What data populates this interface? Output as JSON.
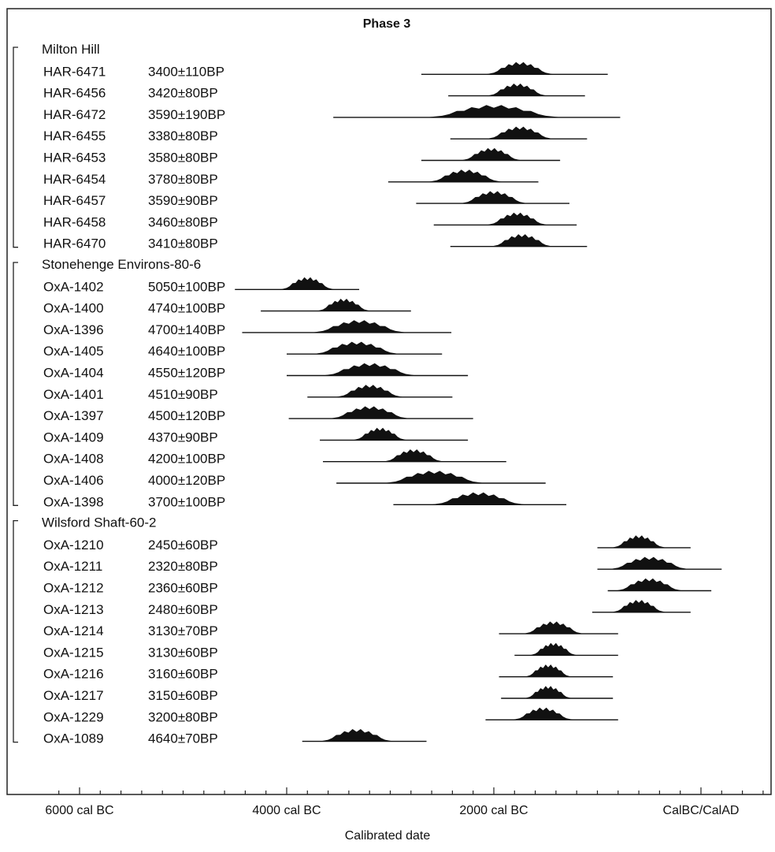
{
  "chart_data": {
    "type": "range",
    "title": "Phase 3",
    "xlabel": "Calibrated date",
    "ylabel": "",
    "x_axis": {
      "unit": "cal BC (negative) / cal AD",
      "range": [
        -6500,
        800
      ],
      "major_ticks": [
        {
          "value": -6000,
          "label": "6000 cal BC"
        },
        {
          "value": -4000,
          "label": "4000 cal BC"
        },
        {
          "value": -2000,
          "label": "2000 cal BC"
        },
        {
          "value": 0,
          "label": "CalBC/CalAD"
        }
      ],
      "minor_tick_step": 200
    },
    "grid": false,
    "groups": [
      {
        "name": "Milton Hill",
        "samples": [
          {
            "lab": "HAR-6471",
            "date": "3400±110BP",
            "range": [
              -2700,
              -900
            ],
            "peak": [
              -2000,
              -1500
            ]
          },
          {
            "lab": "HAR-6456",
            "date": "3420±80BP",
            "range": [
              -2440,
              -1120
            ],
            "peak": [
              -2000,
              -1550
            ]
          },
          {
            "lab": "HAR-6472",
            "date": "3590±190BP",
            "range": [
              -3550,
              -780
            ],
            "peak": [
              -2500,
              -1500
            ]
          },
          {
            "lab": "HAR-6455",
            "date": "3380±80BP",
            "range": [
              -2420,
              -1100
            ],
            "peak": [
              -2000,
              -1500
            ]
          },
          {
            "lab": "HAR-6453",
            "date": "3580±80BP",
            "range": [
              -2700,
              -1360
            ],
            "peak": [
              -2250,
              -1800
            ]
          },
          {
            "lab": "HAR-6454",
            "date": "3780±80BP",
            "range": [
              -3020,
              -1570
            ],
            "peak": [
              -2550,
              -2000
            ]
          },
          {
            "lab": "HAR-6457",
            "date": "3590±90BP",
            "range": [
              -2750,
              -1270
            ],
            "peak": [
              -2250,
              -1750
            ]
          },
          {
            "lab": "HAR-6458",
            "date": "3460±80BP",
            "range": [
              -2580,
              -1200
            ],
            "peak": [
              -2000,
              -1550
            ]
          },
          {
            "lab": "HAR-6470",
            "date": "3410±80BP",
            "range": [
              -2420,
              -1100
            ],
            "peak": [
              -1960,
              -1500
            ]
          }
        ]
      },
      {
        "name": "Stonehenge Environs-80-6",
        "samples": [
          {
            "lab": "OxA-1402",
            "date": "5050±100BP",
            "range": [
              -4500,
              -3300
            ],
            "peak": [
              -4000,
              -3600
            ]
          },
          {
            "lab": "OxA-1400",
            "date": "4740±100BP",
            "range": [
              -4250,
              -2800
            ],
            "peak": [
              -3650,
              -3250
            ]
          },
          {
            "lab": "OxA-1396",
            "date": "4700±140BP",
            "range": [
              -4430,
              -2410
            ],
            "peak": [
              -3650,
              -2950
            ]
          },
          {
            "lab": "OxA-1405",
            "date": "4640±100BP",
            "range": [
              -4000,
              -2500
            ],
            "peak": [
              -3650,
              -3000
            ]
          },
          {
            "lab": "OxA-1404",
            "date": "4550±120BP",
            "range": [
              -4000,
              -2250
            ],
            "peak": [
              -3550,
              -2850
            ]
          },
          {
            "lab": "OxA-1401",
            "date": "4510±90BP",
            "range": [
              -3800,
              -2400
            ],
            "peak": [
              -3450,
              -2950
            ]
          },
          {
            "lab": "OxA-1397",
            "date": "4500±120BP",
            "range": [
              -3980,
              -2200
            ],
            "peak": [
              -3500,
              -2900
            ]
          },
          {
            "lab": "OxA-1409",
            "date": "4370±90BP",
            "range": [
              -3680,
              -2250
            ],
            "peak": [
              -3300,
              -2900
            ]
          },
          {
            "lab": "OxA-1408",
            "date": "4200±100BP",
            "range": [
              -3650,
              -1880
            ],
            "peak": [
              -3000,
              -2550
            ]
          },
          {
            "lab": "OxA-1406",
            "date": "4000±120BP",
            "range": [
              -3520,
              -1500
            ],
            "peak": [
              -2950,
              -2200
            ]
          },
          {
            "lab": "OxA-1398",
            "date": "3700±100BP",
            "range": [
              -2970,
              -1300
            ],
            "peak": [
              -2500,
              -1800
            ]
          }
        ]
      },
      {
        "name": "Wilsford Shaft-60-2",
        "samples": [
          {
            "lab": "OxA-1210",
            "date": "2450±60BP",
            "range": [
              -1000,
              -100
            ],
            "peak": [
              -800,
              -400
            ]
          },
          {
            "lab": "OxA-1211",
            "date": "2320±80BP",
            "range": [
              -1000,
              200
            ],
            "peak": [
              -800,
              -200
            ]
          },
          {
            "lab": "OxA-1212",
            "date": "2360±60BP",
            "range": [
              -900,
              100
            ],
            "peak": [
              -750,
              -250
            ]
          },
          {
            "lab": "OxA-1213",
            "date": "2480±60BP",
            "range": [
              -1050,
              -100
            ],
            "peak": [
              -800,
              -400
            ]
          },
          {
            "lab": "OxA-1214",
            "date": "3130±70BP",
            "range": [
              -1950,
              -800
            ],
            "peak": [
              -1650,
              -1200
            ]
          },
          {
            "lab": "OxA-1215",
            "date": "3130±60BP",
            "range": [
              -1800,
              -800
            ],
            "peak": [
              -1600,
              -1250
            ]
          },
          {
            "lab": "OxA-1216",
            "date": "3160±60BP",
            "range": [
              -1950,
              -850
            ],
            "peak": [
              -1650,
              -1300
            ]
          },
          {
            "lab": "OxA-1217",
            "date": "3150±60BP",
            "range": [
              -1930,
              -850
            ],
            "peak": [
              -1650,
              -1300
            ]
          },
          {
            "lab": "OxA-1229",
            "date": "3200±80BP",
            "range": [
              -2080,
              -800
            ],
            "peak": [
              -1750,
              -1300
            ]
          },
          {
            "lab": "OxA-1089",
            "date": "4640±70BP",
            "range": [
              -3850,
              -2650
            ],
            "peak": [
              -3600,
              -3050
            ]
          }
        ]
      }
    ]
  }
}
